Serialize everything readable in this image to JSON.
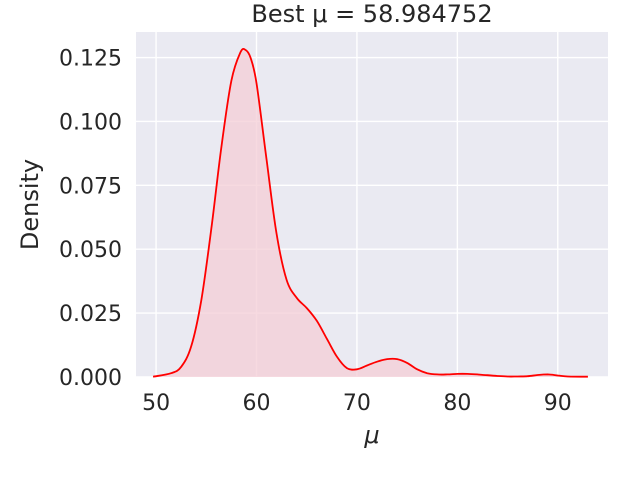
{
  "chart_data": {
    "type": "line",
    "kind": "kde-density",
    "title": "Best μ = 58.984752",
    "xlabel": "μ",
    "ylabel": "Density",
    "xlim": [
      48,
      95
    ],
    "ylim": [
      0,
      0.135
    ],
    "xticks": [
      50,
      60,
      70,
      80,
      90
    ],
    "yticks": [
      0.0,
      0.025,
      0.05,
      0.075,
      0.1,
      0.125
    ],
    "xtick_labels": [
      "50",
      "60",
      "70",
      "80",
      "90"
    ],
    "ytick_labels": [
      "0.000",
      "0.025",
      "0.050",
      "0.075",
      "0.100",
      "0.125"
    ],
    "grid": true,
    "background": "#eaeaf2",
    "series": [
      {
        "line_color": "#ff0000",
        "fill_color": "#f4cdd6",
        "filled": true,
        "x": [
          49.7,
          51.5,
          52.5,
          53.5,
          54.5,
          55.5,
          56.5,
          57.5,
          58.4,
          58.9,
          59.4,
          60.0,
          61.0,
          62.0,
          63.0,
          64.0,
          65.0,
          66.0,
          67.0,
          68.0,
          69.0,
          70.0,
          71.0,
          72.0,
          73.0,
          74.0,
          75.0,
          76.0,
          77.0,
          78.0,
          79.0,
          80.0,
          81.0,
          82.0,
          83.0,
          84.0,
          85.0,
          86.0,
          87.0,
          88.0,
          89.0,
          90.0,
          91.0,
          93.0
        ],
        "y": [
          0.0001,
          0.0015,
          0.004,
          0.012,
          0.03,
          0.058,
          0.09,
          0.116,
          0.127,
          0.128,
          0.125,
          0.115,
          0.085,
          0.056,
          0.038,
          0.031,
          0.027,
          0.022,
          0.015,
          0.008,
          0.0035,
          0.003,
          0.0045,
          0.006,
          0.007,
          0.007,
          0.0055,
          0.003,
          0.0015,
          0.001,
          0.001,
          0.0012,
          0.0012,
          0.001,
          0.0007,
          0.0004,
          0.0002,
          0.0002,
          0.0003,
          0.0008,
          0.001,
          0.0006,
          0.0002,
          0.0001
        ]
      }
    ]
  }
}
